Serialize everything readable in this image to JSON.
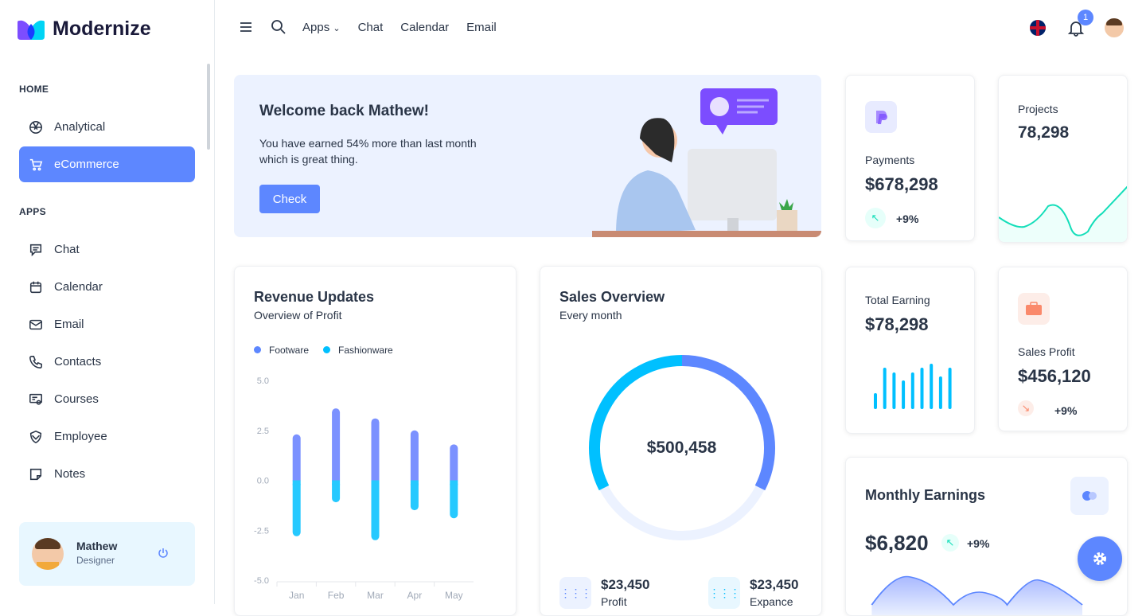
{
  "brand": {
    "name": "Modernize"
  },
  "sidebar": {
    "sections": [
      {
        "title": "HOME"
      },
      {
        "title": "APPS"
      }
    ],
    "items": [
      {
        "label": "Analytical",
        "icon": "aperture-icon"
      },
      {
        "label": "eCommerce",
        "icon": "shopping-cart-icon",
        "active": true
      },
      {
        "label": "Chat",
        "icon": "message-icon"
      },
      {
        "label": "Calendar",
        "icon": "calendar-icon"
      },
      {
        "label": "Email",
        "icon": "mail-icon"
      },
      {
        "label": "Contacts",
        "icon": "phone-icon"
      },
      {
        "label": "Courses",
        "icon": "certificate-icon"
      },
      {
        "label": "Employee",
        "icon": "shield-icon"
      },
      {
        "label": "Notes",
        "icon": "note-icon"
      }
    ],
    "profile": {
      "name": "Mathew",
      "role": "Designer"
    }
  },
  "topbar": {
    "links": [
      "Apps",
      "Chat",
      "Calendar",
      "Email"
    ],
    "notification_count": "1"
  },
  "welcome": {
    "title": "Welcome back Mathew!",
    "line1": "You have earned 54% more than last month",
    "line2": "which is great thing.",
    "button": "Check"
  },
  "payments": {
    "label": "Payments",
    "value": "$678,298",
    "change": "+9%"
  },
  "projects": {
    "label": "Projects",
    "value": "78,298"
  },
  "total_earning": {
    "label": "Total Earning",
    "value": "$78,298"
  },
  "sales_profit": {
    "label": "Sales Profit",
    "value": "$456,120",
    "change": "+9%"
  },
  "monthly": {
    "label": "Monthly Earnings",
    "value": "$6,820",
    "change": "+9%"
  },
  "sales_overview": {
    "title": "Sales Overview",
    "subtitle": "Every month",
    "center": "$500,458",
    "profit_value": "$23,450",
    "profit_label": "Profit",
    "expense_value": "$23,450",
    "expense_label": "Expance"
  },
  "colors": {
    "primary": "#5d87ff",
    "secondary": "#49beff",
    "success": "#13deb9",
    "warning": "#fa896b"
  },
  "chart_data": {
    "type": "bar",
    "title": "Revenue Updates",
    "subtitle": "Overview of Profit",
    "categories": [
      "Jan",
      "Feb",
      "Mar",
      "Apr",
      "May"
    ],
    "series": [
      {
        "name": "Footware",
        "values": [
          2.3,
          3.6,
          3.1,
          2.5,
          1.8
        ],
        "color": "#7b91ff"
      },
      {
        "name": "Fashionware",
        "values": [
          -2.8,
          -1.1,
          -3.0,
          -1.5,
          -1.9
        ],
        "color": "#26c9ff"
      }
    ],
    "yticks": [
      "5.0",
      "2.5",
      "0.0",
      "-2.5",
      "-5.0"
    ],
    "ylim": [
      -5,
      5
    ],
    "legend": "top-left"
  }
}
